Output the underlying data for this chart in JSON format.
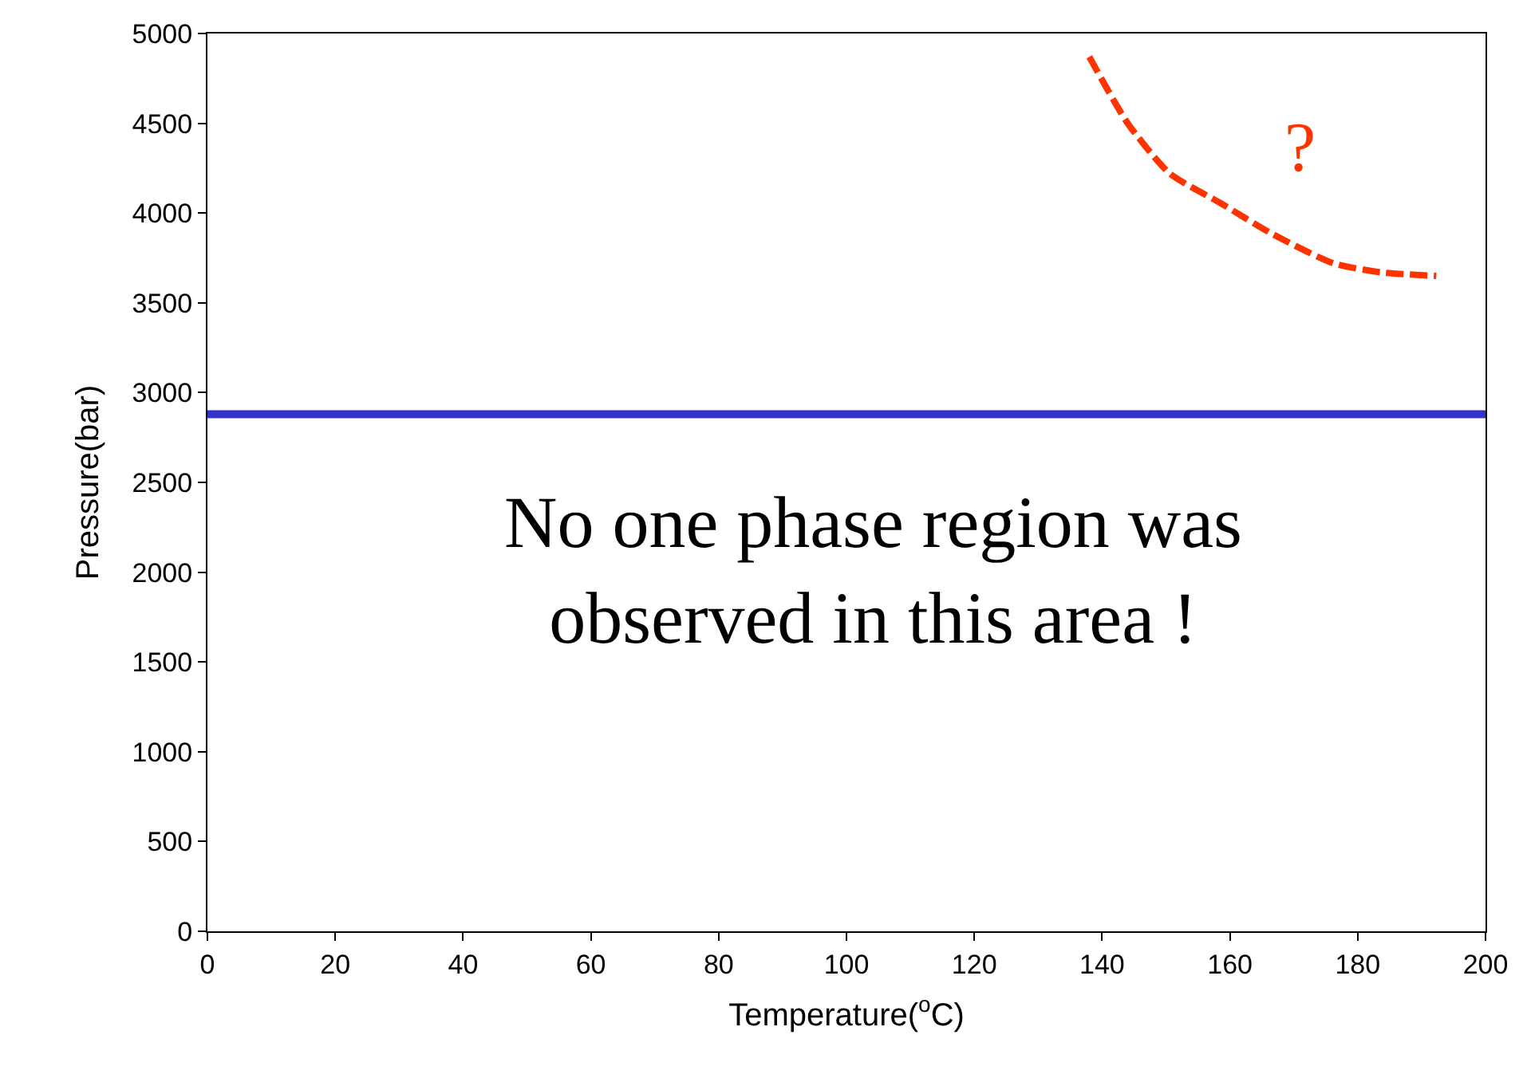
{
  "chart_data": {
    "type": "line",
    "xlabel": "Temperature($^{o}$C)",
    "ylabel": "Pressure(bar)",
    "xlim": [
      0,
      200
    ],
    "xticks": [
      0,
      20,
      40,
      60,
      80,
      100,
      120,
      140,
      160,
      180,
      200
    ],
    "ylim": [
      0,
      5000
    ],
    "yticks": [
      0,
      500,
      1000,
      1500,
      2000,
      2500,
      3000,
      3500,
      4000,
      4500,
      5000
    ],
    "series": [
      {
        "color": "#3333cc",
        "line_style": "solid",
        "x": [
          0,
          200
        ],
        "values": [
          2880,
          2880
        ]
      },
      {
        "color": "#ff3300",
        "line_style": "dashed",
        "x": [
          138,
          144,
          150.6,
          158.8,
          166.3,
          176.2,
          183.6,
          192.3
        ],
        "values": [
          4870,
          4500,
          4220,
          4050,
          3890,
          3720,
          3670,
          3650
        ]
      }
    ],
    "annotations": [
      "?",
      "No one phase region was\nobserved in this area !"
    ]
  }
}
